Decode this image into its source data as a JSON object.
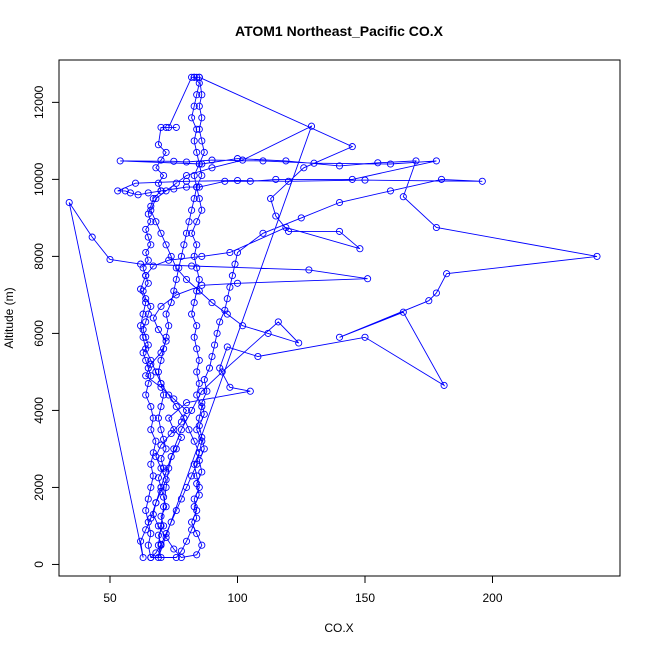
{
  "chart_data": {
    "type": "scatter",
    "title": "ATOM1 Northeast_Pacific CO.X",
    "xlabel": "CO.X",
    "ylabel": "Altitude (m)",
    "xlim": [
      30,
      250
    ],
    "ylim": [
      -300,
      13100
    ],
    "xticks": [
      50,
      100,
      150,
      200
    ],
    "yticks": [
      0,
      2000,
      4000,
      6000,
      8000,
      10000,
      12000
    ],
    "grid": false,
    "legend": "none",
    "connected": true,
    "series_color": "#0000ff",
    "marker": "open-circle",
    "points": [
      [
        66,
        180
      ],
      [
        68,
        300
      ],
      [
        70,
        520
      ],
      [
        69,
        760
      ],
      [
        71,
        1000
      ],
      [
        70,
        1250
      ],
      [
        72,
        1500
      ],
      [
        71,
        1750
      ],
      [
        70,
        2000
      ],
      [
        69,
        2250
      ],
      [
        71,
        2500
      ],
      [
        70,
        2750
      ],
      [
        72,
        3000
      ],
      [
        71,
        3250
      ],
      [
        70,
        3500
      ],
      [
        69,
        3800
      ],
      [
        70,
        4100
      ],
      [
        71,
        4400
      ],
      [
        70,
        4700
      ],
      [
        69,
        5000
      ],
      [
        70,
        5300
      ],
      [
        71,
        5600
      ],
      [
        72,
        5900
      ],
      [
        73,
        6200
      ],
      [
        72,
        6500
      ],
      [
        74,
        6800
      ],
      [
        75,
        7100
      ],
      [
        76,
        7400
      ],
      [
        77,
        7700
      ],
      [
        78,
        8000
      ],
      [
        79,
        8300
      ],
      [
        80,
        8600
      ],
      [
        81,
        8900
      ],
      [
        82,
        9200
      ],
      [
        83,
        9500
      ],
      [
        84,
        9800
      ],
      [
        83,
        10100
      ],
      [
        85,
        10400
      ],
      [
        84,
        10700
      ],
      [
        83,
        11000
      ],
      [
        84,
        11300
      ],
      [
        82,
        11600
      ],
      [
        83,
        11900
      ],
      [
        84,
        12200
      ],
      [
        85,
        12500
      ],
      [
        83,
        12650
      ],
      [
        85,
        12650
      ],
      [
        84,
        12650
      ],
      [
        83,
        12650
      ],
      [
        82,
        12650
      ],
      [
        73,
        11350
      ],
      [
        76,
        11350
      ],
      [
        72,
        11350
      ],
      [
        70,
        11350
      ],
      [
        69,
        10900
      ],
      [
        72,
        10700
      ],
      [
        70,
        10500
      ],
      [
        68,
        10300
      ],
      [
        71,
        10100
      ],
      [
        69,
        9900
      ],
      [
        70,
        9700
      ],
      [
        67,
        9500
      ],
      [
        66,
        9300
      ],
      [
        65,
        9100
      ],
      [
        66,
        8900
      ],
      [
        64,
        8700
      ],
      [
        65,
        8500
      ],
      [
        66,
        8300
      ],
      [
        64,
        8100
      ],
      [
        65,
        7900
      ],
      [
        63,
        7700
      ],
      [
        64,
        7500
      ],
      [
        65,
        7300
      ],
      [
        63,
        7100
      ],
      [
        64,
        6900
      ],
      [
        66,
        6700
      ],
      [
        65,
        6500
      ],
      [
        64,
        6300
      ],
      [
        63,
        6100
      ],
      [
        64,
        5900
      ],
      [
        65,
        5700
      ],
      [
        63,
        5500
      ],
      [
        64,
        5300
      ],
      [
        65,
        5100
      ],
      [
        66,
        4900
      ],
      [
        65,
        4700
      ],
      [
        64,
        4400
      ],
      [
        66,
        4100
      ],
      [
        67,
        3800
      ],
      [
        66,
        3500
      ],
      [
        68,
        3200
      ],
      [
        67,
        2900
      ],
      [
        66,
        2600
      ],
      [
        67,
        2300
      ],
      [
        66,
        2000
      ],
      [
        65,
        1700
      ],
      [
        64,
        1400
      ],
      [
        65,
        1100
      ],
      [
        66,
        800
      ],
      [
        65,
        500
      ],
      [
        66,
        180
      ],
      [
        76,
        180
      ],
      [
        78,
        350
      ],
      [
        80,
        600
      ],
      [
        82,
        900
      ],
      [
        84,
        1200
      ],
      [
        83,
        1500
      ],
      [
        85,
        1800
      ],
      [
        84,
        2100
      ],
      [
        86,
        2400
      ],
      [
        85,
        2700
      ],
      [
        87,
        3000
      ],
      [
        86,
        3300
      ],
      [
        85,
        3600
      ],
      [
        87,
        3900
      ],
      [
        86,
        4200
      ],
      [
        88,
        4500
      ],
      [
        87,
        4800
      ],
      [
        89,
        5100
      ],
      [
        90,
        5400
      ],
      [
        91,
        5700
      ],
      [
        92,
        6000
      ],
      [
        93,
        6300
      ],
      [
        95,
        6600
      ],
      [
        96,
        6900
      ],
      [
        97,
        7200
      ],
      [
        98,
        7500
      ],
      [
        99,
        7800
      ],
      [
        100,
        8100
      ],
      [
        110,
        8600
      ],
      [
        125,
        9000
      ],
      [
        140,
        9400
      ],
      [
        160,
        9700
      ],
      [
        180,
        10000
      ],
      [
        196,
        9950
      ],
      [
        150,
        9980
      ],
      [
        120,
        9950
      ],
      [
        100,
        9970
      ],
      [
        80,
        9950
      ],
      [
        60,
        9900
      ],
      [
        53,
        9700
      ],
      [
        56,
        9700
      ],
      [
        58,
        9650
      ],
      [
        61,
        9600
      ],
      [
        65,
        9650
      ],
      [
        70,
        9700
      ],
      [
        75,
        9750
      ],
      [
        80,
        9800
      ],
      [
        85,
        9800
      ],
      [
        95,
        9950
      ],
      [
        105,
        9950
      ],
      [
        115,
        10000
      ],
      [
        145,
        10000
      ],
      [
        178,
        10480
      ],
      [
        160,
        10400
      ],
      [
        130,
        10420
      ],
      [
        110,
        10480
      ],
      [
        90,
        10500
      ],
      [
        80,
        10450
      ],
      [
        75,
        10470
      ],
      [
        54,
        10480
      ],
      [
        86,
        10400
      ],
      [
        100,
        10540
      ],
      [
        119,
        10480
      ],
      [
        140,
        10350
      ],
      [
        155,
        10430
      ],
      [
        170,
        10480
      ],
      [
        165,
        9550
      ],
      [
        178,
        8750
      ],
      [
        241,
        8000
      ],
      [
        182,
        7550
      ],
      [
        178,
        7050
      ],
      [
        175,
        6850
      ],
      [
        140,
        5900
      ],
      [
        165,
        6550
      ],
      [
        181,
        4650
      ],
      [
        150,
        5900
      ],
      [
        108,
        5400
      ],
      [
        96,
        5650
      ],
      [
        93,
        5100
      ],
      [
        97,
        4600
      ],
      [
        105,
        4500
      ],
      [
        80,
        4200
      ],
      [
        73,
        3800
      ],
      [
        75,
        3500
      ],
      [
        78,
        3300
      ],
      [
        76,
        3000
      ],
      [
        74,
        2800
      ],
      [
        72,
        2400
      ],
      [
        70,
        2000
      ],
      [
        68,
        1600
      ],
      [
        66,
        1200
      ],
      [
        64,
        900
      ],
      [
        62,
        600
      ],
      [
        63,
        180
      ],
      [
        34,
        9400
      ],
      [
        43,
        8500
      ],
      [
        50,
        7920
      ],
      [
        62,
        7800
      ],
      [
        82,
        7750
      ],
      [
        128,
        7650
      ],
      [
        151,
        7420
      ],
      [
        100,
        7300
      ],
      [
        86,
        7250
      ],
      [
        76,
        7000
      ],
      [
        70,
        6700
      ],
      [
        67,
        6400
      ],
      [
        69,
        6100
      ],
      [
        72,
        5800
      ],
      [
        70,
        5500
      ],
      [
        66,
        5200
      ],
      [
        64,
        4900
      ],
      [
        70,
        4600
      ],
      [
        75,
        4300
      ],
      [
        80,
        4000
      ],
      [
        78,
        3700
      ],
      [
        74,
        3400
      ],
      [
        70,
        3100
      ],
      [
        68,
        2800
      ],
      [
        70,
        2500
      ],
      [
        72,
        2200
      ],
      [
        70,
        1900
      ],
      [
        68,
        1600
      ],
      [
        67,
        1300
      ],
      [
        69,
        1000
      ],
      [
        72,
        700
      ],
      [
        75,
        400
      ],
      [
        78,
        180
      ],
      [
        84,
        250
      ],
      [
        86,
        500
      ],
      [
        84,
        800
      ],
      [
        82,
        1100
      ],
      [
        84,
        1400
      ],
      [
        83,
        1700
      ],
      [
        85,
        2000
      ],
      [
        84,
        2300
      ],
      [
        83,
        2600
      ],
      [
        85,
        2900
      ],
      [
        86,
        3200
      ],
      [
        84,
        3500
      ],
      [
        85,
        3800
      ],
      [
        86,
        4100
      ],
      [
        84,
        4400
      ],
      [
        85,
        4700
      ],
      [
        84,
        5000
      ],
      [
        85,
        5300
      ],
      [
        84,
        5600
      ],
      [
        83,
        5900
      ],
      [
        84,
        6200
      ],
      [
        82,
        6500
      ],
      [
        83,
        6800
      ],
      [
        84,
        7100
      ],
      [
        85,
        7400
      ],
      [
        84,
        7700
      ],
      [
        83,
        8000
      ],
      [
        84,
        8300
      ],
      [
        82,
        8600
      ],
      [
        84,
        8900
      ],
      [
        86,
        9200
      ],
      [
        85,
        9500
      ],
      [
        84,
        9800
      ],
      [
        86,
        10100
      ],
      [
        85,
        10400
      ],
      [
        87,
        10700
      ],
      [
        86,
        11000
      ],
      [
        85,
        11300
      ],
      [
        86,
        11600
      ],
      [
        85,
        11900
      ],
      [
        86,
        12200
      ],
      [
        85,
        12650
      ],
      [
        145,
        10850
      ],
      [
        126,
        10300
      ],
      [
        113,
        9500
      ],
      [
        115,
        9050
      ],
      [
        120,
        8650
      ],
      [
        140,
        8650
      ],
      [
        148,
        8200
      ],
      [
        119,
        8750
      ],
      [
        97,
        8100
      ],
      [
        86,
        8000
      ],
      [
        73,
        7900
      ],
      [
        67,
        7750
      ],
      [
        64,
        7500
      ],
      [
        62,
        7150
      ],
      [
        64,
        6800
      ],
      [
        63,
        6500
      ],
      [
        62,
        6200
      ],
      [
        63,
        5900
      ],
      [
        64,
        5600
      ],
      [
        66,
        5300
      ],
      [
        68,
        5000
      ],
      [
        70,
        4700
      ],
      [
        73,
        4400
      ],
      [
        76,
        4100
      ],
      [
        79,
        3800
      ],
      [
        81,
        3500
      ],
      [
        83,
        3200
      ],
      [
        85,
        2900
      ],
      [
        84,
        2600
      ],
      [
        82,
        2300
      ],
      [
        80,
        2000
      ],
      [
        78,
        1700
      ],
      [
        76,
        1400
      ],
      [
        74,
        1100
      ],
      [
        72,
        800
      ],
      [
        70,
        500
      ],
      [
        69,
        180
      ],
      [
        129,
        11380
      ],
      [
        102,
        10500
      ],
      [
        90,
        10300
      ],
      [
        80,
        10100
      ],
      [
        76,
        9900
      ],
      [
        72,
        9700
      ],
      [
        68,
        9500
      ],
      [
        66,
        9200
      ],
      [
        68,
        8900
      ],
      [
        70,
        8600
      ],
      [
        72,
        8300
      ],
      [
        74,
        8000
      ],
      [
        76,
        7700
      ],
      [
        80,
        7400
      ],
      [
        85,
        7100
      ],
      [
        90,
        6800
      ],
      [
        96,
        6500
      ],
      [
        102,
        6200
      ],
      [
        112,
        6000
      ],
      [
        124,
        5750
      ],
      [
        116,
        6300
      ],
      [
        94,
        5000
      ],
      [
        86,
        4500
      ],
      [
        82,
        4000
      ],
      [
        78,
        3500
      ],
      [
        75,
        3000
      ],
      [
        73,
        2500
      ],
      [
        72,
        2000
      ],
      [
        71,
        1500
      ],
      [
        70,
        1000
      ],
      [
        69,
        500
      ],
      [
        70,
        180
      ]
    ]
  }
}
